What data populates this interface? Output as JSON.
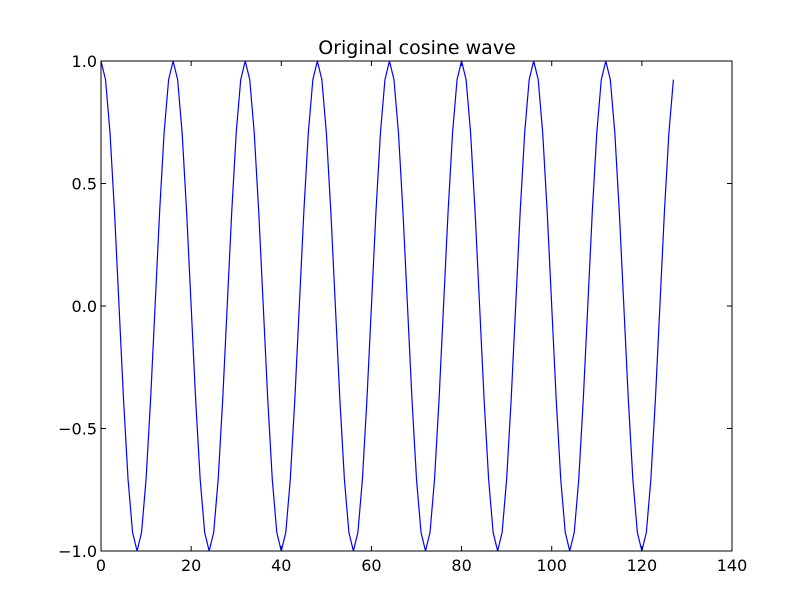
{
  "chart_data": {
    "type": "line",
    "title": "Original cosine wave",
    "xlabel": "",
    "ylabel": "",
    "xlim": [
      0,
      140
    ],
    "ylim": [
      -1.0,
      1.0
    ],
    "xticks": [
      0,
      20,
      40,
      60,
      80,
      100,
      120,
      140
    ],
    "yticks": [
      -1.0,
      -0.5,
      0.0,
      0.5,
      1.0
    ],
    "xtick_labels": [
      "0",
      "20",
      "40",
      "60",
      "80",
      "100",
      "120",
      "140"
    ],
    "ytick_labels": [
      "−1.0",
      "−0.5",
      "0.0",
      "0.5",
      "1.0"
    ],
    "grid": false,
    "legend": "none",
    "series": [
      {
        "color": "#0000ff",
        "x": [
          0,
          1,
          2,
          3,
          4,
          5,
          6,
          7,
          8,
          9,
          10,
          11,
          12,
          13,
          14,
          15,
          16,
          17,
          18,
          19,
          20,
          21,
          22,
          23,
          24,
          25,
          26,
          27,
          28,
          29,
          30,
          31,
          32,
          33,
          34,
          35,
          36,
          37,
          38,
          39,
          40,
          41,
          42,
          43,
          44,
          45,
          46,
          47,
          48,
          49,
          50,
          51,
          52,
          53,
          54,
          55,
          56,
          57,
          58,
          59,
          60,
          61,
          62,
          63,
          64,
          65,
          66,
          67,
          68,
          69,
          70,
          71,
          72,
          73,
          74,
          75,
          76,
          77,
          78,
          79,
          80,
          81,
          82,
          83,
          84,
          85,
          86,
          87,
          88,
          89,
          90,
          91,
          92,
          93,
          94,
          95,
          96,
          97,
          98,
          99,
          100,
          101,
          102,
          103,
          104,
          105,
          106,
          107,
          108,
          109,
          110,
          111,
          112,
          113,
          114,
          115,
          116,
          117,
          118,
          119,
          120,
          121,
          122,
          123,
          124,
          125,
          126,
          127
        ],
        "y": [
          1.0,
          0.924,
          0.707,
          0.383,
          0.0,
          -0.383,
          -0.707,
          -0.924,
          -1.0,
          -0.924,
          -0.707,
          -0.383,
          0.0,
          0.383,
          0.707,
          0.924,
          1.0,
          0.924,
          0.707,
          0.383,
          0.0,
          -0.383,
          -0.707,
          -0.924,
          -1.0,
          -0.924,
          -0.707,
          -0.383,
          0.0,
          0.383,
          0.707,
          0.924,
          1.0,
          0.924,
          0.707,
          0.383,
          0.0,
          -0.383,
          -0.707,
          -0.924,
          -1.0,
          -0.924,
          -0.707,
          -0.383,
          0.0,
          0.383,
          0.707,
          0.924,
          1.0,
          0.924,
          0.707,
          0.383,
          0.0,
          -0.383,
          -0.707,
          -0.924,
          -1.0,
          -0.924,
          -0.707,
          -0.383,
          0.0,
          0.383,
          0.707,
          0.924,
          1.0,
          0.924,
          0.707,
          0.383,
          0.0,
          -0.383,
          -0.707,
          -0.924,
          -1.0,
          -0.924,
          -0.707,
          -0.383,
          0.0,
          0.383,
          0.707,
          0.924,
          1.0,
          0.924,
          0.707,
          0.383,
          0.0,
          -0.383,
          -0.707,
          -0.924,
          -1.0,
          -0.924,
          -0.707,
          -0.383,
          0.0,
          0.383,
          0.707,
          0.924,
          1.0,
          0.924,
          0.707,
          0.383,
          0.0,
          -0.383,
          -0.707,
          -0.924,
          -1.0,
          -0.924,
          -0.707,
          -0.383,
          0.0,
          0.383,
          0.707,
          0.924,
          1.0,
          0.924,
          0.707,
          0.383,
          0.0,
          -0.383,
          -0.707,
          -0.924,
          -1.0,
          -0.924,
          -0.707,
          -0.383,
          0.0,
          0.383,
          0.707,
          0.924
        ]
      }
    ]
  }
}
